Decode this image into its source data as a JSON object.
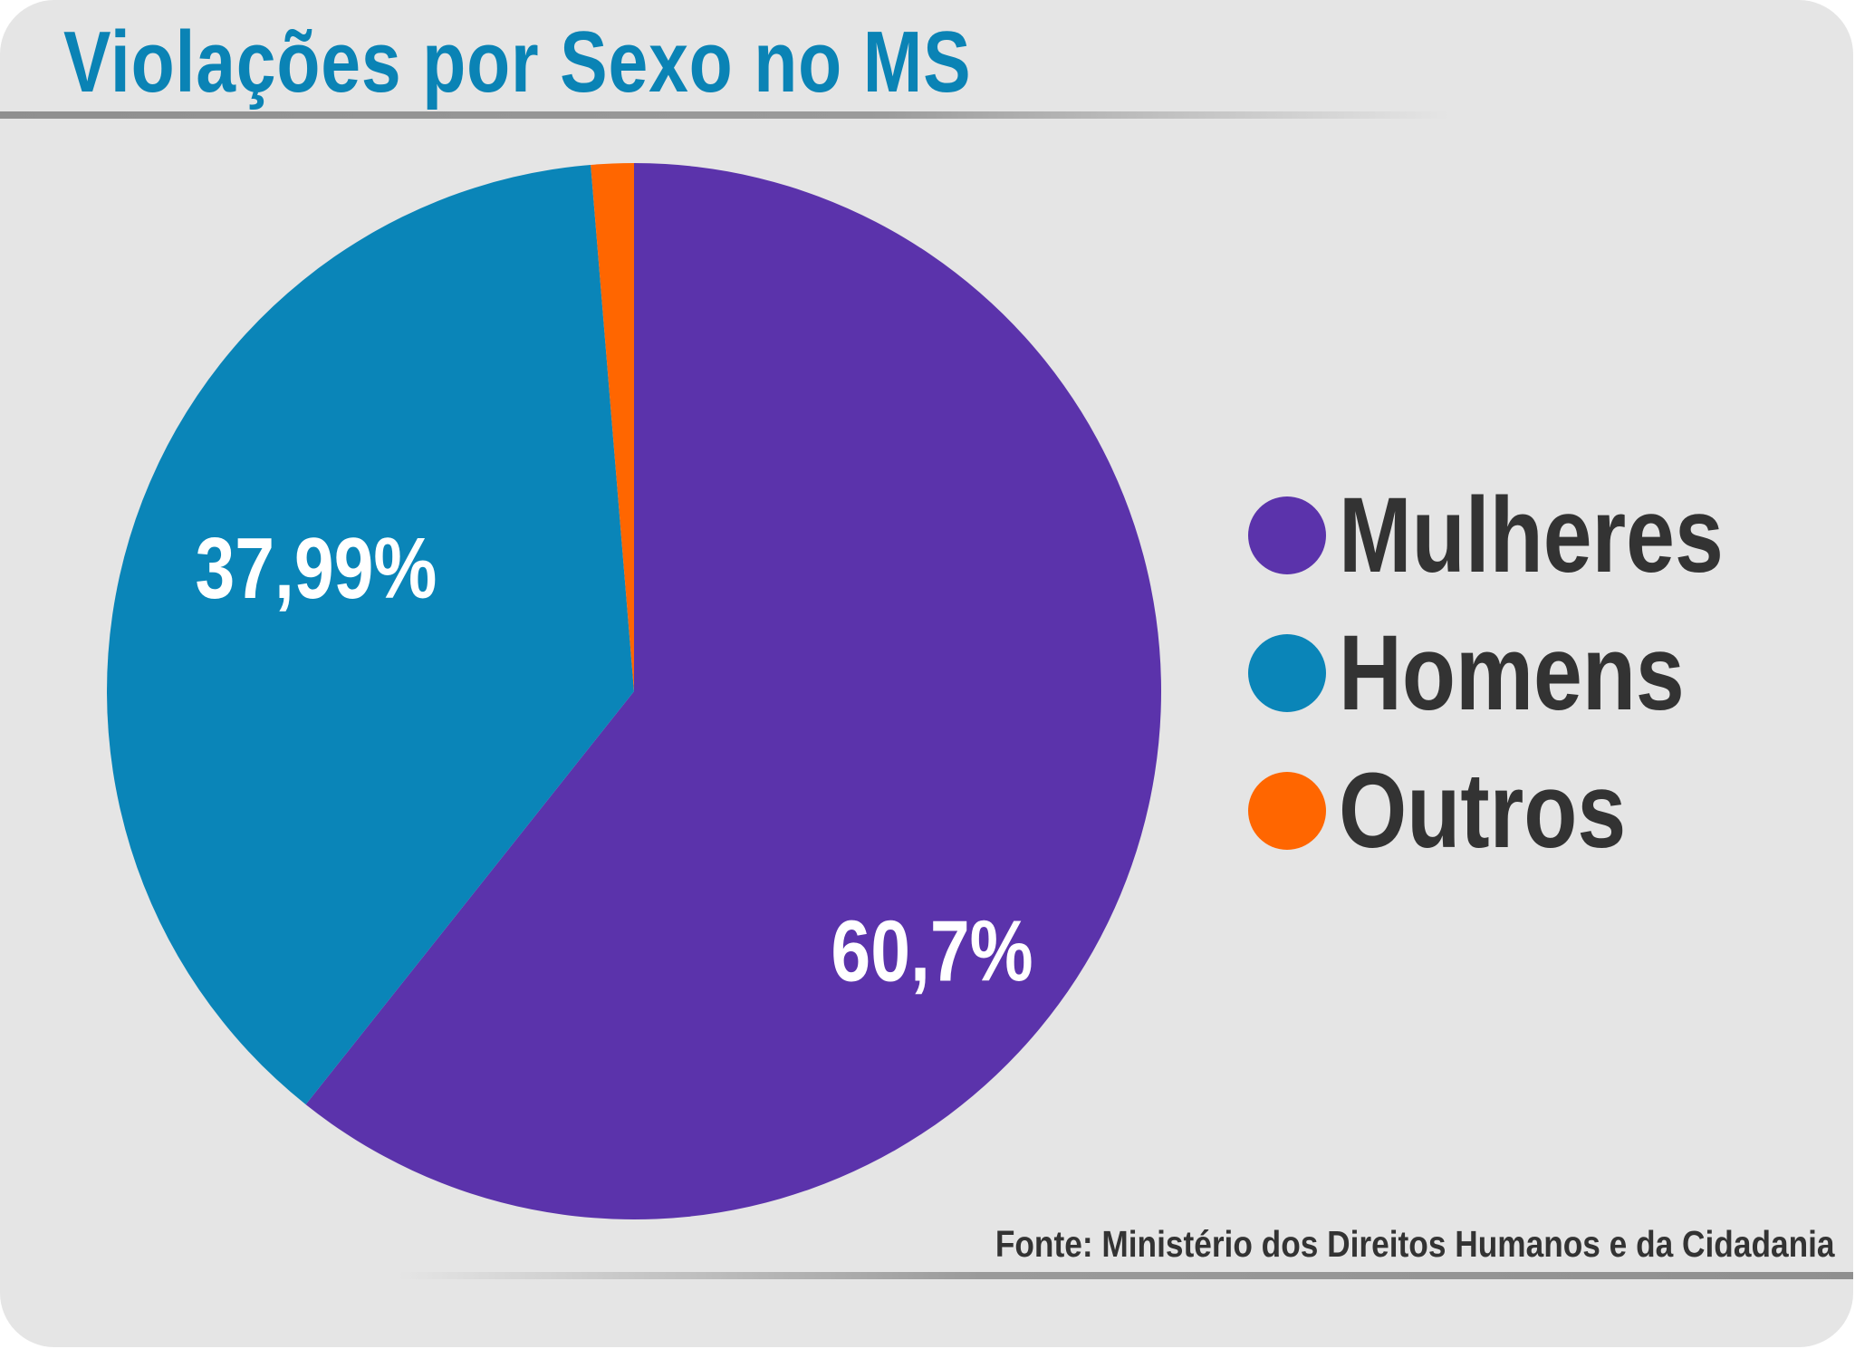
{
  "chart_data": {
    "type": "pie",
    "title": "Violações por Sexo no MS",
    "source": "Fonte: Ministério dos Direitos Humanos e da Cidadania",
    "slices": [
      {
        "label": "Mulheres",
        "value": 60.7,
        "display": "60,7%",
        "color": "#5b33ab"
      },
      {
        "label": "Homens",
        "value": 37.99,
        "display": "37,99%",
        "color": "#0a85b8"
      },
      {
        "label": "Outros",
        "value": 1.31,
        "display": "",
        "color": "#ff6600"
      }
    ],
    "legend_position": "right"
  }
}
